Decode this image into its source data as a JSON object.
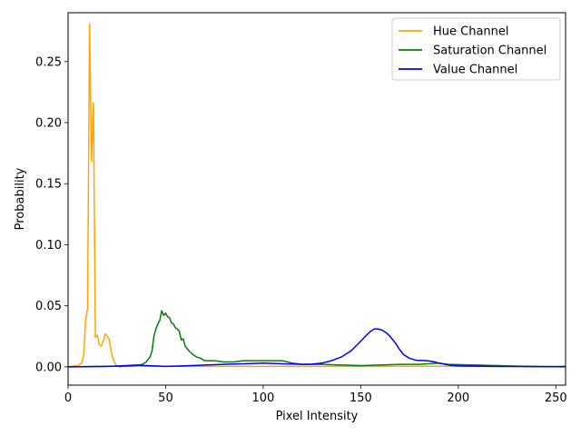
{
  "chart_data": {
    "type": "line",
    "title": "",
    "xlabel": "Pixel Intensity",
    "ylabel": "Probability",
    "xlim": [
      0,
      255
    ],
    "ylim": [
      -0.015,
      0.29
    ],
    "xticks": [
      0,
      50,
      100,
      150,
      200,
      250
    ],
    "yticks": [
      0.0,
      0.05,
      0.1,
      0.15,
      0.2,
      0.25
    ],
    "ytick_labels": [
      "0.00",
      "0.05",
      "0.10",
      "0.15",
      "0.20",
      "0.25"
    ],
    "grid": false,
    "legend_position": "top-right",
    "series": [
      {
        "name": "Hue Channel",
        "color": "#ffa500",
        "x": [
          0,
          5,
          7,
          8,
          9,
          10,
          11,
          12,
          13,
          14,
          15,
          16,
          17,
          18,
          19,
          20,
          21,
          22,
          23,
          24,
          25,
          26,
          27,
          28,
          30,
          35,
          40,
          60,
          100,
          150,
          180,
          200,
          255
        ],
        "y": [
          0.0,
          0.001,
          0.003,
          0.01,
          0.038,
          0.048,
          0.281,
          0.168,
          0.216,
          0.024,
          0.026,
          0.018,
          0.017,
          0.021,
          0.027,
          0.025,
          0.023,
          0.013,
          0.007,
          0.003,
          0.001,
          0.0,
          0.0,
          0.0003,
          0.0005,
          0.0005,
          0.0004,
          0.0003,
          0.0003,
          0.0003,
          0.0004,
          0.0004,
          0.0
        ]
      },
      {
        "name": "Saturation Channel",
        "color": "#008000",
        "x": [
          0,
          30,
          35,
          38,
          40,
          42,
          43,
          44,
          45,
          46,
          47,
          48,
          49,
          50,
          51,
          52,
          53,
          54,
          55,
          56,
          57,
          58,
          59,
          60,
          62,
          64,
          65,
          66,
          68,
          70,
          75,
          80,
          85,
          90,
          95,
          100,
          105,
          110,
          115,
          120,
          130,
          140,
          150,
          160,
          170,
          180,
          190,
          195,
          200,
          210,
          220,
          230,
          240,
          255
        ],
        "y": [
          0.0,
          0.0005,
          0.001,
          0.002,
          0.004,
          0.008,
          0.013,
          0.025,
          0.031,
          0.035,
          0.038,
          0.046,
          0.042,
          0.044,
          0.041,
          0.04,
          0.036,
          0.035,
          0.032,
          0.031,
          0.029,
          0.022,
          0.023,
          0.017,
          0.013,
          0.01,
          0.009,
          0.008,
          0.007,
          0.005,
          0.005,
          0.004,
          0.004,
          0.005,
          0.005,
          0.005,
          0.005,
          0.005,
          0.003,
          0.002,
          0.002,
          0.0015,
          0.001,
          0.0015,
          0.002,
          0.002,
          0.003,
          0.002,
          0.0018,
          0.0015,
          0.001,
          0.0005,
          0.0003,
          0.0
        ]
      },
      {
        "name": "Value Channel",
        "color": "#0000ff",
        "x": [
          0,
          20,
          30,
          35,
          40,
          50,
          60,
          70,
          80,
          90,
          100,
          110,
          120,
          125,
          130,
          135,
          140,
          145,
          150,
          153,
          155,
          157,
          159,
          161,
          163,
          165,
          168,
          170,
          172,
          175,
          178,
          180,
          182,
          185,
          188,
          190,
          195,
          200,
          210,
          220,
          230,
          240,
          250,
          255
        ],
        "y": [
          0.0,
          0.0003,
          0.001,
          0.0015,
          0.001,
          0.0003,
          0.0008,
          0.0015,
          0.002,
          0.0025,
          0.003,
          0.0025,
          0.002,
          0.0022,
          0.003,
          0.005,
          0.008,
          0.013,
          0.021,
          0.026,
          0.029,
          0.031,
          0.031,
          0.03,
          0.028,
          0.025,
          0.019,
          0.014,
          0.01,
          0.007,
          0.0055,
          0.0052,
          0.0052,
          0.0048,
          0.004,
          0.003,
          0.0015,
          0.0008,
          0.0005,
          0.0003,
          0.0003,
          0.0002,
          0.0002,
          0.0003
        ]
      }
    ]
  }
}
